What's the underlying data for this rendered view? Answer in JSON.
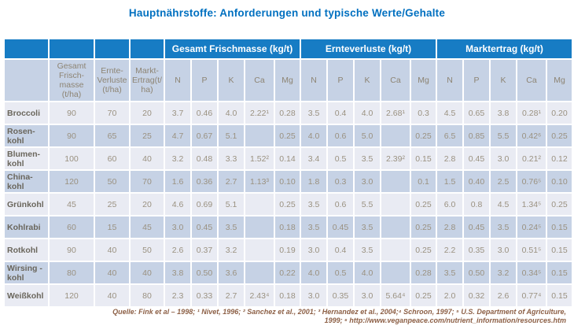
{
  "title": "Hauptnährstoffe: Anforderungen und typische Werte/Gehalte",
  "table": {
    "group_headers": [
      "Gesamt Frischmasse (kg/t)",
      "Ernteverluste (kg/t)",
      "Marktertrag (kg/t)"
    ],
    "stem_headers": [
      "Gesamt\nFrisch-\nmasse\n(t/ha)",
      "Ernte-\nVerluste\n(t/ha)",
      "Markt-\nErtrag(t/\nha)"
    ],
    "nutrients": [
      "N",
      "P",
      "K",
      "Ca",
      "Mg"
    ],
    "rows": [
      {
        "label": "Broccoli",
        "values": [
          "90",
          "70",
          "20",
          "3.7",
          "0.46",
          "4.0",
          "2.22¹",
          "0.28",
          "3.5",
          "0.4",
          "4.0",
          "2.68¹",
          "0.3",
          "4.5",
          "0.65",
          "3.8",
          "0.28¹",
          "0.20"
        ]
      },
      {
        "label": "Rosen-\nkohl",
        "values": [
          "90",
          "65",
          "25",
          "4.7",
          "0.67",
          "5.1",
          "",
          "0.25",
          "4.0",
          "0.6",
          "5.0",
          "",
          "0.25",
          "6.5",
          "0.85",
          "5.5",
          "0.42⁶",
          "0.25"
        ]
      },
      {
        "label": "Blumen-\nkohl",
        "values": [
          "100",
          "60",
          "40",
          "3.2",
          "0.48",
          "3.3",
          "1.52²",
          "0.14",
          "3.4",
          "0.5",
          "3.5",
          "2.39²",
          "0.15",
          "2.8",
          "0.45",
          "3.0",
          "0.21²",
          "0.12"
        ]
      },
      {
        "label": "China-\nkohl",
        "values": [
          "120",
          "50",
          "70",
          "1.6",
          "0.36",
          "2.7",
          "1.13³",
          "0.10",
          "1.8",
          "0.3",
          "3.0",
          "",
          "0.1",
          "1.5",
          "0.40",
          "2.5",
          "0.76⁵",
          "0.10"
        ]
      },
      {
        "label": "Grünkohl",
        "values": [
          "45",
          "25",
          "20",
          "4.6",
          "0.69",
          "5.1",
          "",
          "0.25",
          "3.5",
          "0.6",
          "5.5",
          "",
          "0.25",
          "6.0",
          "0.8",
          "4.5",
          "1.34⁵",
          "0.25"
        ]
      },
      {
        "label": "Kohlrabi",
        "values": [
          "60",
          "15",
          "45",
          "3.0",
          "0.45",
          "3.5",
          "",
          "0.18",
          "3.5",
          "0.45",
          "3.5",
          "",
          "0.25",
          "2.8",
          "0.45",
          "3.5",
          "0.24⁵",
          "0.15"
        ]
      },
      {
        "label": "Rotkohl",
        "values": [
          "90",
          "40",
          "50",
          "2.6",
          "0.37",
          "3.2",
          "",
          "0.19",
          "3.0",
          "0.4",
          "3.5",
          "",
          "0.25",
          "2.2",
          "0.35",
          "3.0",
          "0.51⁵",
          "0.15"
        ]
      },
      {
        "label": "Wirsing -\nkohl",
        "values": [
          "80",
          "40",
          "40",
          "3.8",
          "0.50",
          "3.6",
          "",
          "0.22",
          "4.0",
          "0.5",
          "4.0",
          "",
          "0.28",
          "3.5",
          "0.50",
          "3.2",
          "0.34⁵",
          "0.15"
        ]
      },
      {
        "label": "Weißkohl",
        "values": [
          "120",
          "40",
          "80",
          "2.3",
          "0.33",
          "2.7",
          "2.43⁴",
          "0.18",
          "3.0",
          "0.35",
          "3.0",
          "5.64⁴",
          "0.25",
          "2.0",
          "0.32",
          "2.6",
          "0.77⁴",
          "0.15"
        ]
      }
    ]
  },
  "footer": {
    "text": "Quelle: Fink et al – 1998; ¹ Nivet, 1996; ² Sanchez et al., 2001; ³ Hernandez et al., 2004;⁴ Schroon, 1997; ⁵ U.S. Department of Agriculture,\n1999; ⁶ http://www.veganpeace.com/nutrient_information/resources.htm"
  },
  "colors": {
    "title_blue": "#0070C0",
    "header_blue": "#177CC4",
    "row_light": "#E9EBF3",
    "row_dark": "#C6D2E5",
    "value_text": "#9A9180",
    "footer_brown_red": "#8C5F45"
  }
}
